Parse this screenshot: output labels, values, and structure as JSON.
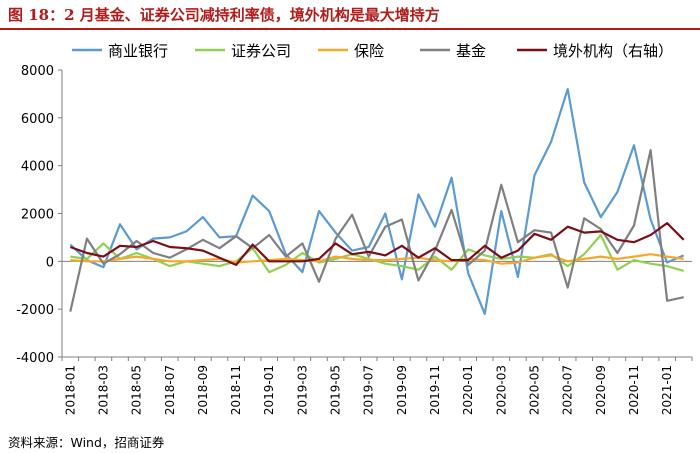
{
  "header": {
    "title": "图 18：2 月基金、证券公司减持利率债，境外机构是最大增持方"
  },
  "footer": {
    "source": "资料来源：Wind，招商证券"
  },
  "chart_data": {
    "type": "line",
    "x": [
      "2018-01",
      "2018-02",
      "2018-03",
      "2018-04",
      "2018-05",
      "2018-06",
      "2018-07",
      "2018-08",
      "2018-09",
      "2018-10",
      "2018-11",
      "2018-12",
      "2019-01",
      "2019-02",
      "2019-03",
      "2019-04",
      "2019-05",
      "2019-06",
      "2019-07",
      "2019-08",
      "2019-09",
      "2019-10",
      "2019-11",
      "2019-12",
      "2020-01",
      "2020-02",
      "2020-03",
      "2020-04",
      "2020-05",
      "2020-06",
      "2020-07",
      "2020-08",
      "2020-09",
      "2020-10",
      "2020-11",
      "2020-12",
      "2021-01",
      "2021-02"
    ],
    "xticks": [
      "2018-01",
      "2018-03",
      "2018-05",
      "2018-07",
      "2018-09",
      "2018-11",
      "2019-01",
      "2019-03",
      "2019-05",
      "2019-07",
      "2019-09",
      "2019-11",
      "2020-01",
      "2020-03",
      "2020-05",
      "2020-07",
      "2020-09",
      "2020-11",
      "2021-01"
    ],
    "ylim": [
      -4000,
      8000
    ],
    "yticks": [
      -4000,
      -2000,
      0,
      2000,
      4000,
      6000,
      8000
    ],
    "series": [
      {
        "name": "商业银行",
        "color": "#5b9bd5",
        "axis": "left",
        "values": [
          700,
          50,
          -250,
          1550,
          500,
          950,
          1000,
          1250,
          1850,
          1000,
          1050,
          2750,
          2100,
          300,
          -450,
          2100,
          1200,
          450,
          600,
          2000,
          -750,
          2800,
          1450,
          3500,
          -500,
          -2200,
          2100,
          -650,
          3600,
          5000,
          7200,
          3300,
          1850,
          2900,
          4850,
          1750,
          -50,
          250
        ]
      },
      {
        "name": "证券公司",
        "color": "#92d050",
        "axis": "left",
        "values": [
          200,
          100,
          750,
          100,
          350,
          100,
          -200,
          0,
          -100,
          -200,
          0,
          550,
          -450,
          -150,
          350,
          -50,
          100,
          300,
          100,
          -100,
          -200,
          -350,
          200,
          -350,
          500,
          250,
          100,
          200,
          150,
          300,
          -200,
          300,
          1100,
          -350,
          50,
          -100,
          -200,
          -400
        ]
      },
      {
        "name": "保险",
        "color": "#f7a82b",
        "axis": "left",
        "values": [
          50,
          0,
          0,
          100,
          200,
          100,
          0,
          0,
          50,
          100,
          -50,
          0,
          50,
          100,
          50,
          0,
          200,
          100,
          50,
          50,
          100,
          150,
          50,
          0,
          100,
          50,
          -100,
          -50,
          150,
          250,
          0,
          100,
          200,
          100,
          200,
          300,
          200,
          100
        ]
      },
      {
        "name": "基金",
        "color": "#808080",
        "axis": "left",
        "values": [
          -2100,
          950,
          -100,
          300,
          850,
          350,
          150,
          500,
          900,
          550,
          1050,
          550,
          1100,
          200,
          750,
          -850,
          950,
          1950,
          200,
          1450,
          1750,
          -800,
          450,
          2150,
          -150,
          450,
          3200,
          800,
          1300,
          1200,
          -1100,
          1800,
          1350,
          350,
          1500,
          4650,
          -1650,
          -1500
        ]
      },
      {
        "name": "境外机构（右轴）",
        "color": "#7a0f1a",
        "axis": "right",
        "values": [
          600,
          350,
          200,
          650,
          600,
          850,
          600,
          550,
          450,
          150,
          -150,
          700,
          0,
          0,
          0,
          100,
          750,
          300,
          400,
          250,
          650,
          150,
          550,
          50,
          50,
          650,
          150,
          450,
          1150,
          900,
          1450,
          1200,
          1250,
          900,
          800,
          1100,
          1600,
          900
        ]
      }
    ]
  }
}
